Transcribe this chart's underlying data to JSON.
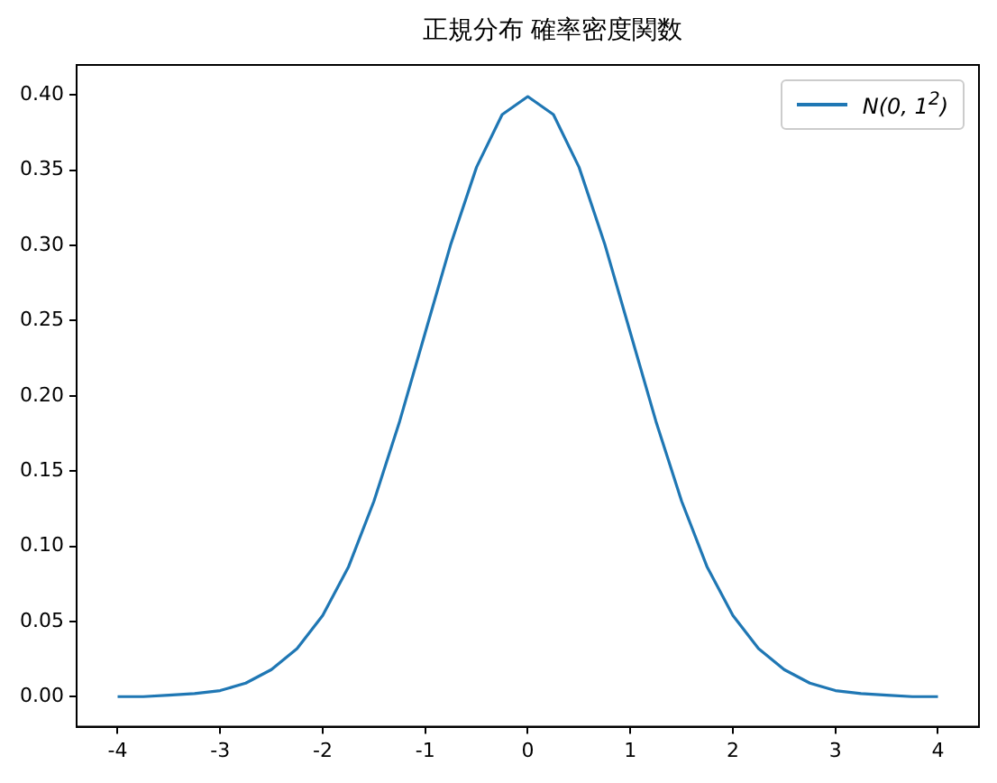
{
  "chart_data": {
    "type": "line",
    "title": "正規分布 確率密度関数",
    "x": [
      -4,
      -3.75,
      -3.5,
      -3.25,
      -3,
      -2.75,
      -2.5,
      -2.25,
      -2,
      -1.75,
      -1.5,
      -1.25,
      -1,
      -0.75,
      -0.5,
      -0.25,
      0,
      0.25,
      0.5,
      0.75,
      1,
      1.25,
      1.5,
      1.75,
      2,
      2.25,
      2.5,
      2.75,
      3,
      3.25,
      3.5,
      3.75,
      4
    ],
    "series": [
      {
        "name": "N(0, 1$^{2}$)",
        "color": "#1f77b4",
        "values": [
          0.0,
          0.0,
          0.001,
          0.002,
          0.004,
          0.009,
          0.018,
          0.032,
          0.054,
          0.086,
          0.13,
          0.183,
          0.242,
          0.301,
          0.352,
          0.387,
          0.399,
          0.387,
          0.352,
          0.301,
          0.242,
          0.183,
          0.13,
          0.086,
          0.054,
          0.032,
          0.018,
          0.009,
          0.004,
          0.002,
          0.001,
          0.0,
          0.0
        ]
      }
    ],
    "xlim": [
      -4.4,
      4.4
    ],
    "ylim": [
      -0.02,
      0.42
    ],
    "xticks": [
      -4,
      -3,
      -2,
      -1,
      0,
      1,
      2,
      3,
      4
    ],
    "yticks": [
      {
        "value": 0,
        "label": "0.00"
      },
      {
        "value": 0.05,
        "label": "0.05"
      },
      {
        "value": 0.1,
        "label": "0.10"
      },
      {
        "value": 0.15,
        "label": "0.15"
      },
      {
        "value": 0.2,
        "label": "0.20"
      },
      {
        "value": 0.25,
        "label": "0.25"
      },
      {
        "value": 0.3,
        "label": "0.30"
      },
      {
        "value": 0.35,
        "label": "0.35"
      },
      {
        "value": 0.4,
        "label": "0.40"
      }
    ],
    "grid": false,
    "legend": "top right",
    "marker": "none",
    "line_style": "solid"
  }
}
